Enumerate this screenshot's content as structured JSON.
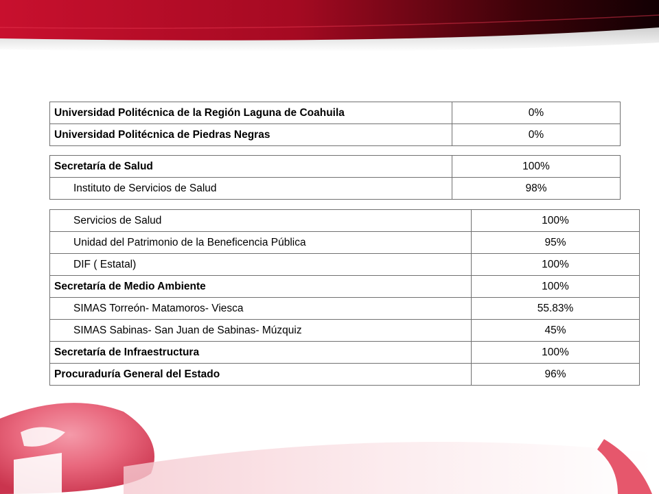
{
  "colors": {
    "accent": "#c8102e",
    "dark": "#1a0004",
    "border": "#6f6f6f"
  },
  "tables": [
    {
      "rows": [
        {
          "name": "Universidad Politécnica de la Región Laguna de Coahuila",
          "value": "0%",
          "style": "bold"
        },
        {
          "name": "Universidad Politécnica de Piedras Negras",
          "value": "0%",
          "style": "bold"
        }
      ]
    },
    {
      "rows": [
        {
          "name": "Secretaría de Salud",
          "value": "100%",
          "style": "bold"
        },
        {
          "name": "Instituto de Servicios de Salud",
          "value": "98%",
          "style": "sub"
        }
      ]
    },
    {
      "rows": [
        {
          "name": "Servicios de Salud",
          "value": "100%",
          "style": "sub"
        },
        {
          "name": "Unidad del Patrimonio de la Beneficencia Pública",
          "value": "95%",
          "style": "sub"
        },
        {
          "name": "DIF ( Estatal)",
          "value": "100%",
          "style": "sub"
        },
        {
          "name": "Secretaría de Medio Ambiente",
          "value": "100%",
          "style": "bold"
        },
        {
          "name": "SIMAS Torreón- Matamoros- Viesca",
          "value": "55.83%",
          "style": "sub"
        },
        {
          "name": "SIMAS Sabinas- San Juan de Sabinas- Múzquiz",
          "value": "45%",
          "style": "sub"
        },
        {
          "name": "Secretaría de Infraestructura",
          "value": "100%",
          "style": "bold"
        },
        {
          "name": "Procuraduría General del Estado",
          "value": "96%",
          "style": "bold"
        }
      ]
    }
  ]
}
